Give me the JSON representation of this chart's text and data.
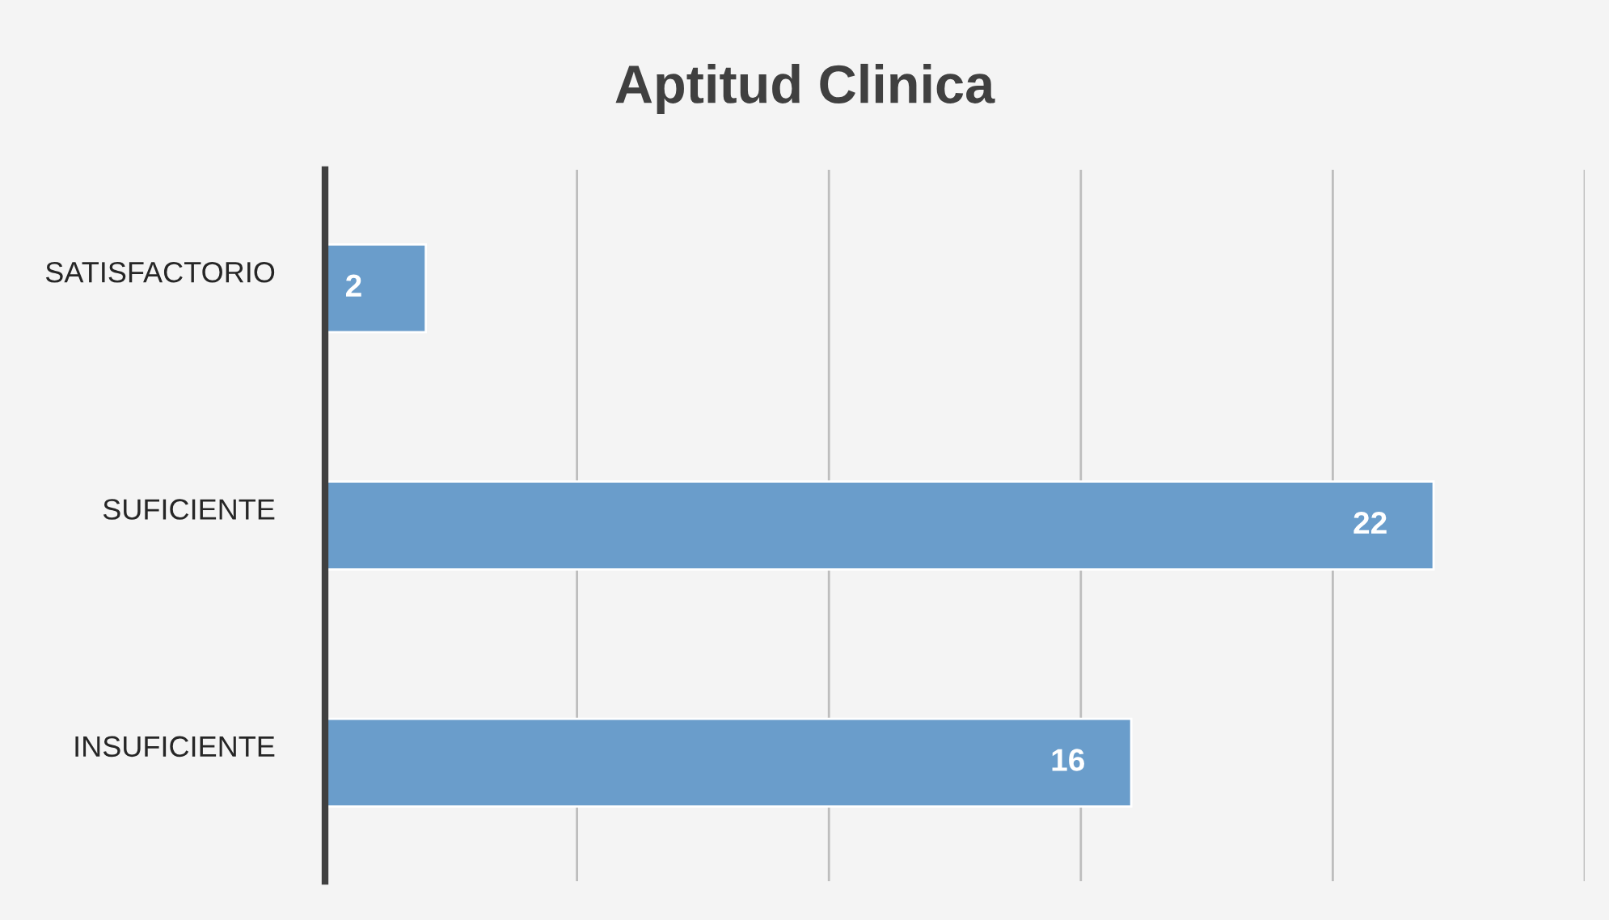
{
  "chart_data": {
    "type": "bar",
    "orientation": "horizontal",
    "title": "Aptitud Clinica",
    "categories": [
      "SATISFACTORIO",
      "SUFICIENTE",
      "INSUFICIENTE"
    ],
    "values": [
      2,
      22,
      16
    ],
    "color": "#6a9dcb",
    "data_labels": true,
    "xlim": [
      0,
      25
    ],
    "xticks": [
      {
        "value": 0,
        "label": null
      },
      {
        "value": 5,
        "label": null
      },
      {
        "value": 10,
        "label": null
      },
      {
        "value": 15,
        "label": null
      },
      {
        "value": 20,
        "label": null
      },
      {
        "value": 25,
        "label": null
      }
    ],
    "grid": "x",
    "tick_labels": "y"
  }
}
